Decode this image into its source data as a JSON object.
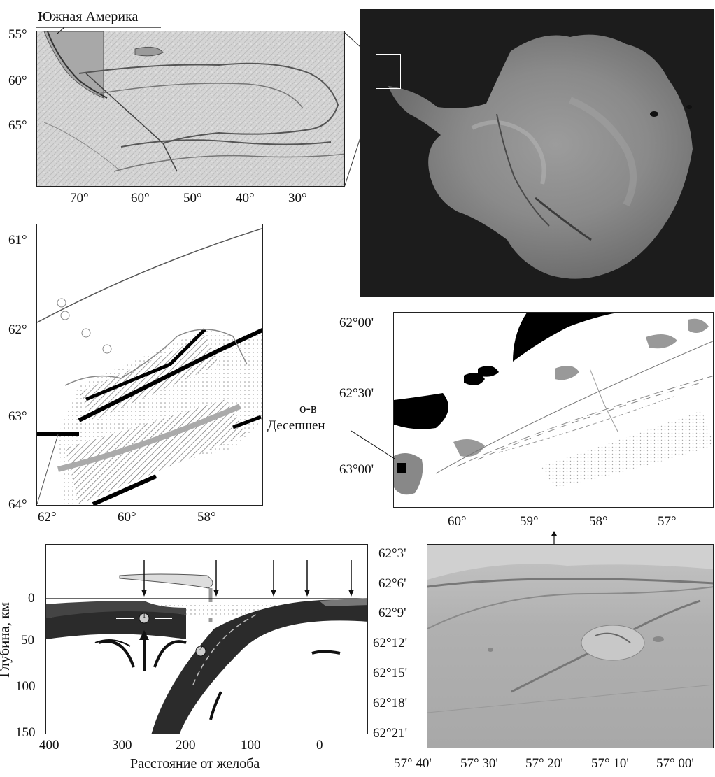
{
  "map_a": {
    "region_label": "Южная Америка",
    "lat_ticks": [
      "55°",
      "60°",
      "65°"
    ],
    "lon_ticks": [
      "70°",
      "60°",
      "50°",
      "40°",
      "30°"
    ]
  },
  "map_b": {
    "lat_ticks": [
      "61°",
      "62°",
      "63°",
      "64°"
    ],
    "lon_ticks": [
      "62°",
      "60°",
      "58°"
    ]
  },
  "map_c": {
    "island_label_line1": "о-в",
    "island_label_line2": "Десепшен",
    "lat_ticks": [
      "62°00'",
      "62°30'",
      "63°00'"
    ],
    "lon_ticks": [
      "60°",
      "59°",
      "58°",
      "57°"
    ]
  },
  "section": {
    "ylabel": "Глубина, км",
    "xlabel": "Расстояние от желоба",
    "y_ticks": [
      "0",
      "50",
      "100",
      "150"
    ],
    "x_ticks": [
      "400",
      "300",
      "200",
      "100",
      "0"
    ],
    "markers": [
      "1",
      "2"
    ]
  },
  "relief": {
    "lat_ticks": [
      "62°3'",
      "62°6'",
      "62°9'",
      "62°12'",
      "62°15'",
      "62°18'",
      "62°21'"
    ],
    "lon_ticks": [
      "57° 40'",
      "57° 30'",
      "57° 20'",
      "57° 10'",
      "57° 00'"
    ]
  }
}
